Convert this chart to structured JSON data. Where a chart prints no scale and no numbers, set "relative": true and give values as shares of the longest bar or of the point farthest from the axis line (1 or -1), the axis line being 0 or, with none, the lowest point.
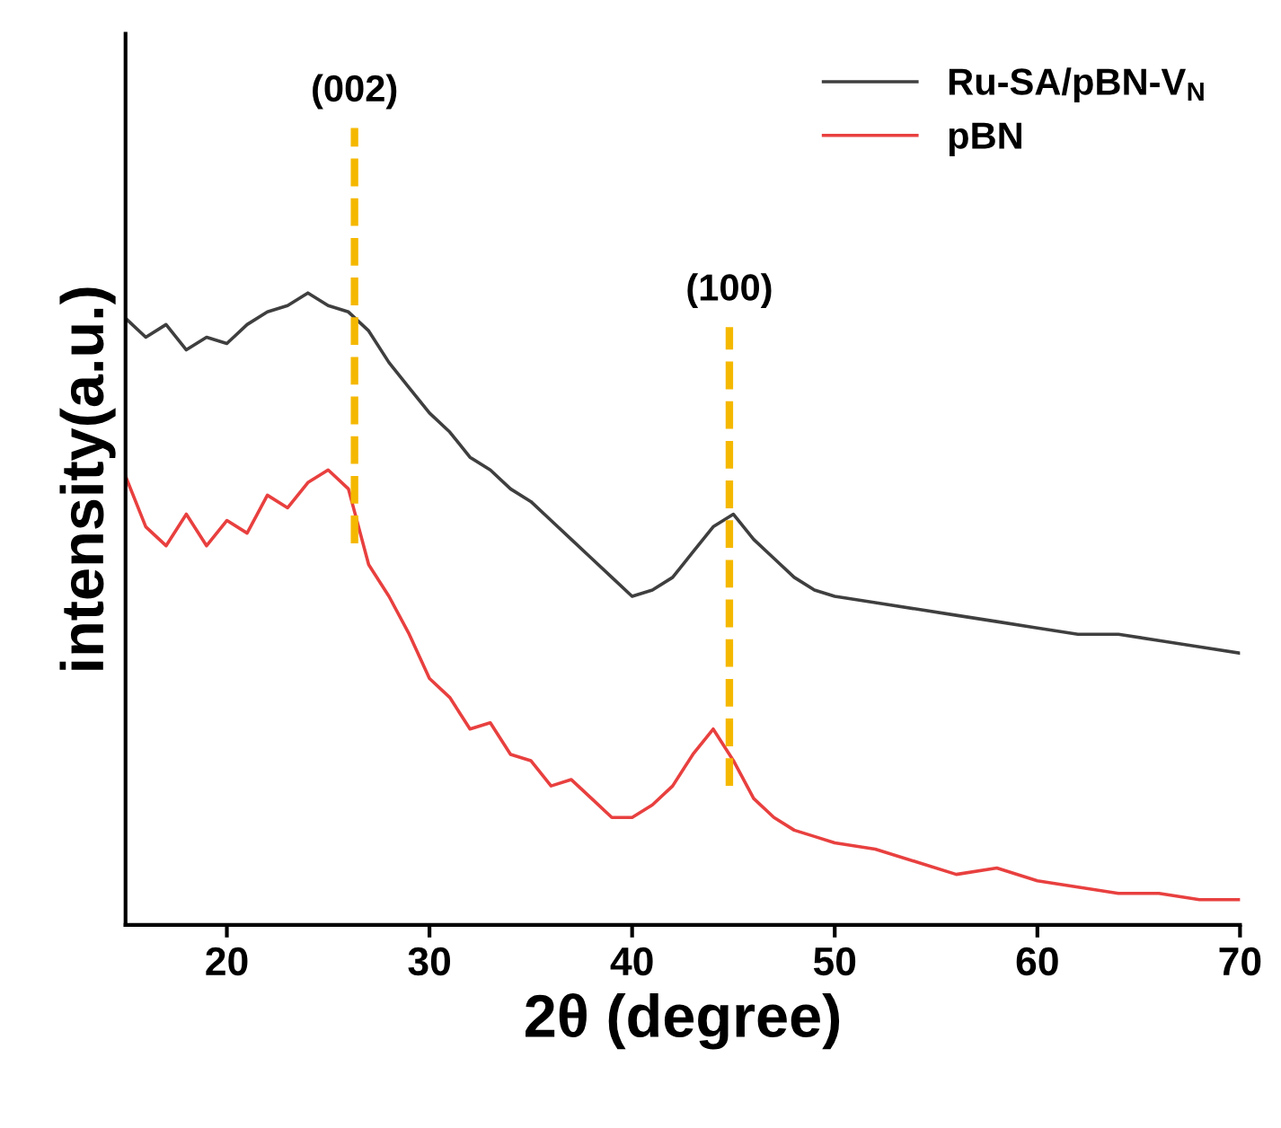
{
  "chart_data": {
    "type": "line",
    "relative": true,
    "xlabel": "2θ (degree)",
    "ylabel": "intensity(a.u.)",
    "xlim": [
      15,
      70
    ],
    "xticks": [
      20,
      30,
      40,
      50,
      60,
      70
    ],
    "legend": "top right",
    "grid": false,
    "line_style": "solid",
    "tick_labels": "x",
    "series": [
      {
        "name": "Ru-SA/pBN-V$_{N}$",
        "color": "#3f3f3f",
        "x": [
          15,
          16,
          17,
          18,
          19,
          20,
          21,
          22,
          23,
          24,
          25,
          26,
          27,
          28,
          29,
          30,
          31,
          32,
          33,
          34,
          35,
          36,
          37,
          38,
          39,
          40,
          41,
          42,
          43,
          44,
          45,
          46,
          47,
          48,
          49,
          50,
          52,
          54,
          56,
          58,
          60,
          62,
          64,
          66,
          68,
          70
        ],
        "values": [
          0.96,
          0.93,
          0.95,
          0.91,
          0.93,
          0.92,
          0.95,
          0.97,
          0.98,
          1.0,
          0.98,
          0.97,
          0.94,
          0.89,
          0.85,
          0.81,
          0.78,
          0.74,
          0.72,
          0.69,
          0.67,
          0.64,
          0.61,
          0.58,
          0.55,
          0.52,
          0.53,
          0.55,
          0.59,
          0.63,
          0.65,
          0.61,
          0.58,
          0.55,
          0.53,
          0.52,
          0.51,
          0.5,
          0.49,
          0.48,
          0.47,
          0.46,
          0.46,
          0.45,
          0.44,
          0.43
        ]
      },
      {
        "name": "pBN",
        "color": "#e8403f",
        "x": [
          15,
          16,
          17,
          18,
          19,
          20,
          21,
          22,
          23,
          24,
          25,
          26,
          27,
          28,
          29,
          30,
          31,
          32,
          33,
          34,
          35,
          36,
          37,
          38,
          39,
          40,
          41,
          42,
          43,
          44,
          45,
          46,
          47,
          48,
          49,
          50,
          52,
          54,
          56,
          58,
          60,
          62,
          64,
          66,
          68,
          70
        ],
        "values": [
          0.71,
          0.63,
          0.6,
          0.65,
          0.6,
          0.64,
          0.62,
          0.68,
          0.66,
          0.7,
          0.72,
          0.69,
          0.57,
          0.52,
          0.46,
          0.39,
          0.36,
          0.31,
          0.32,
          0.27,
          0.26,
          0.22,
          0.23,
          0.2,
          0.17,
          0.17,
          0.19,
          0.22,
          0.27,
          0.31,
          0.26,
          0.2,
          0.17,
          0.15,
          0.14,
          0.13,
          0.12,
          0.1,
          0.08,
          0.09,
          0.07,
          0.06,
          0.05,
          0.05,
          0.04,
          0.04
        ]
      }
    ],
    "ref_lines": [
      {
        "axis": "x",
        "value": 26.3,
        "color": "#f5b800",
        "line_style": "dashed"
      },
      {
        "axis": "x",
        "value": 44.8,
        "color": "#f5b800",
        "line_style": "dashed"
      }
    ],
    "annotations": [
      "(002)",
      "(100)"
    ]
  }
}
